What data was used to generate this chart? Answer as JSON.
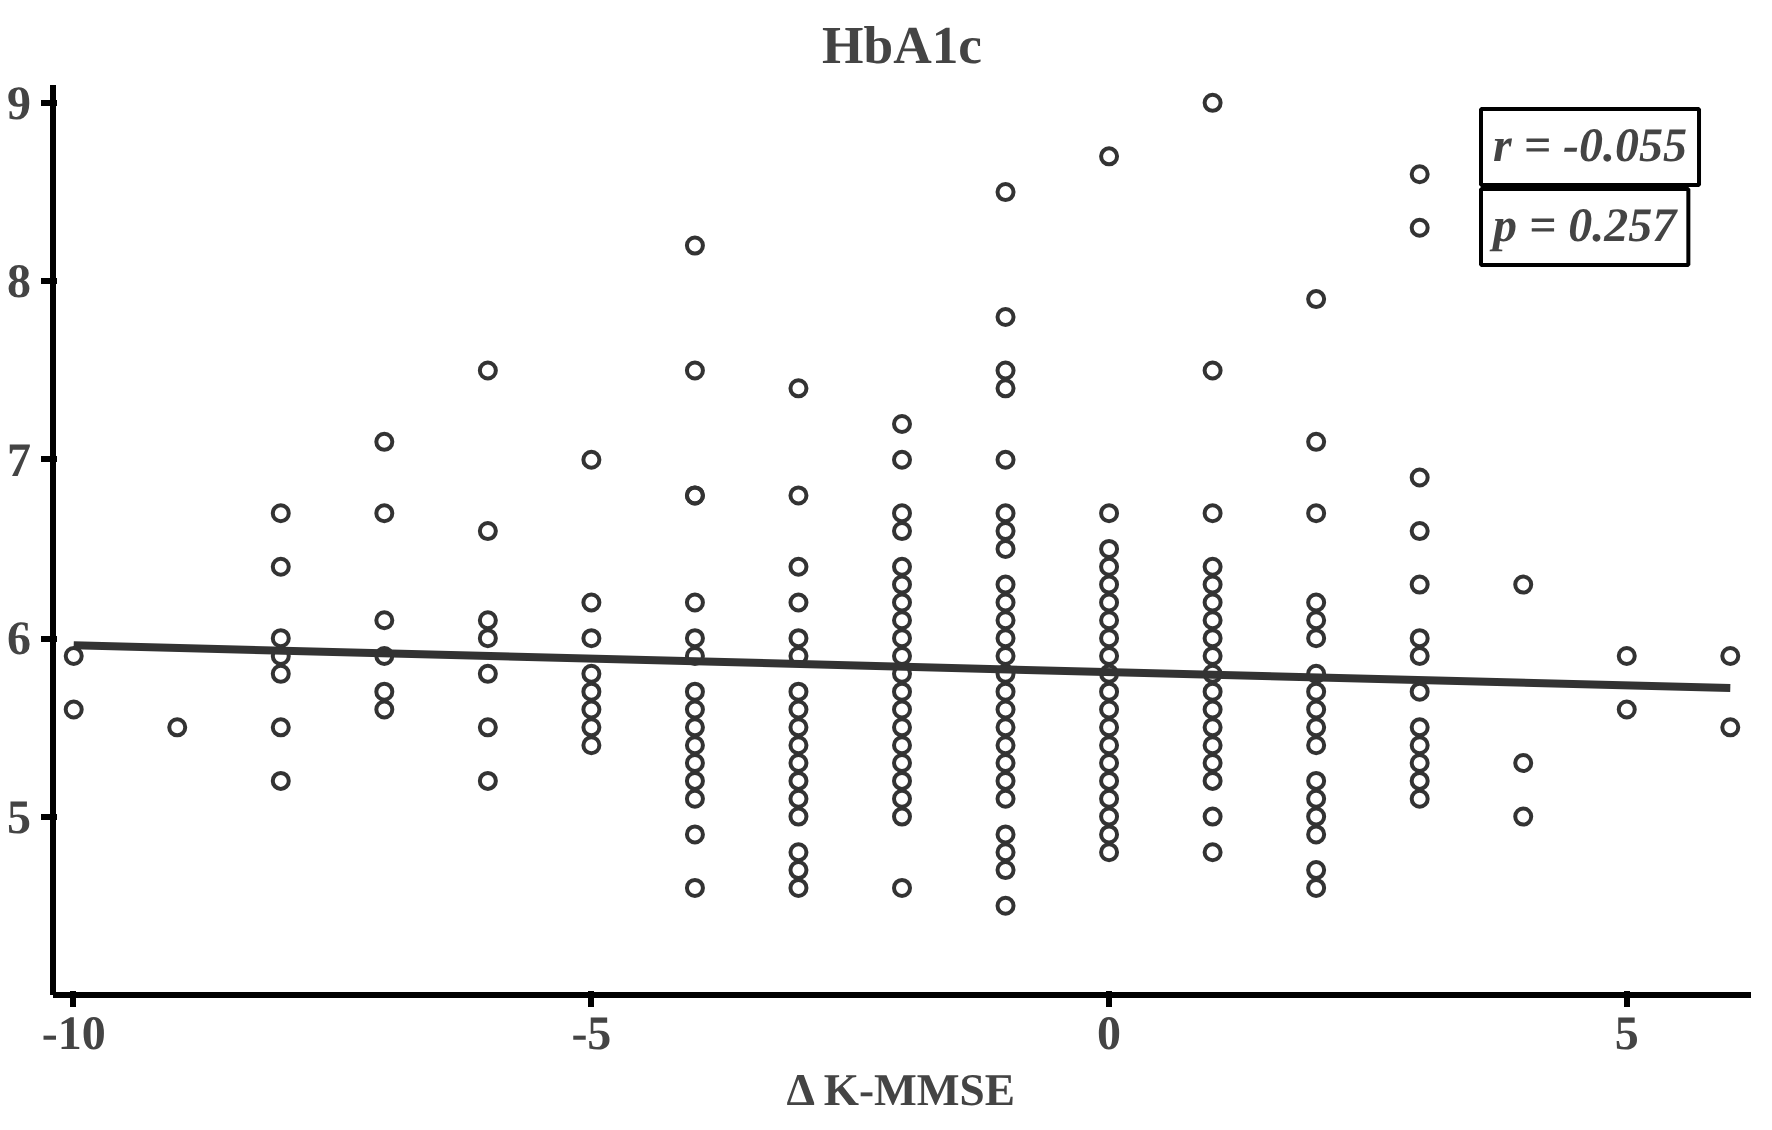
{
  "chart_data": {
    "type": "scatter",
    "title": "HbA1c",
    "xlabel": "Δ K-MMSE",
    "xlim": [
      -10.2,
      6.2
    ],
    "ylim": [
      4,
      9.1
    ],
    "xticks": [
      -10,
      -5,
      0,
      5
    ],
    "yticks": [
      5,
      6,
      7,
      8,
      9
    ],
    "grid": false,
    "marker": "circle",
    "annotations": [
      "r = -0.055",
      "p = 0.257"
    ],
    "series": [
      {
        "color": "#333333",
        "x": [
          -10,
          -10,
          -9,
          -8,
          -8,
          -8,
          -8,
          -8,
          -8,
          -8,
          -7,
          -7,
          -7,
          -7,
          -7,
          -7,
          -6,
          -6,
          -6,
          -6,
          -6,
          -6,
          -6,
          -5,
          -5,
          -5,
          -5,
          -5,
          -5,
          -5,
          -5,
          -4,
          -4,
          -4,
          -4,
          -4,
          -4,
          -4,
          -4,
          -4,
          -4,
          -4,
          -4,
          -4,
          -4,
          -4,
          -4,
          -3,
          -3,
          -3,
          -3,
          -3,
          -3,
          -3,
          -3,
          -3,
          -3,
          -3,
          -3,
          -3,
          -3,
          -3,
          -3,
          -3,
          -2,
          -2,
          -2,
          -2,
          -2,
          -2,
          -2,
          -2,
          -2,
          -2,
          -2,
          -2,
          -2,
          -2,
          -2,
          -2,
          -2,
          -2,
          -2,
          -2,
          -1,
          -1,
          -1,
          -1,
          -1,
          -1,
          -1,
          -1,
          -1,
          -1,
          -1,
          -1,
          -1,
          -1,
          -1,
          -1,
          -1,
          -1,
          -1,
          -1,
          -1,
          -1,
          -1,
          -1,
          -1,
          0,
          0,
          0,
          0,
          0,
          0,
          0,
          0,
          0,
          0,
          0,
          0,
          0,
          0,
          0,
          0,
          0,
          0,
          0,
          0,
          1,
          1,
          1,
          1,
          1,
          1,
          1,
          1,
          1,
          1,
          1,
          1,
          1,
          1,
          1,
          1,
          1,
          1,
          2,
          2,
          2,
          2,
          2,
          2,
          2,
          2,
          2,
          2,
          2,
          2,
          2,
          2,
          2,
          2,
          2,
          3,
          3,
          3,
          3,
          3,
          3,
          3,
          3,
          3,
          3,
          3,
          3,
          3,
          4,
          4,
          4,
          5,
          5,
          6,
          6
        ],
        "values": [
          5.9,
          5.6,
          5.5,
          6.7,
          6.4,
          6.0,
          5.9,
          5.8,
          5.5,
          5.2,
          7.1,
          6.7,
          6.1,
          5.9,
          5.7,
          5.6,
          7.5,
          6.6,
          6.1,
          6.0,
          5.8,
          5.5,
          5.2,
          7.0,
          6.2,
          6.0,
          5.8,
          5.7,
          5.6,
          5.5,
          5.4,
          8.2,
          7.5,
          6.8,
          6.2,
          6.0,
          5.9,
          5.7,
          5.6,
          5.5,
          5.4,
          5.3,
          5.2,
          5.1,
          4.9,
          4.6,
          6.8,
          7.4,
          6.8,
          6.4,
          6.2,
          6.0,
          5.9,
          5.7,
          5.6,
          5.5,
          5.4,
          5.3,
          5.2,
          5.1,
          5.0,
          4.8,
          4.7,
          4.6,
          7.2,
          7.0,
          6.7,
          6.6,
          6.4,
          6.3,
          6.2,
          6.1,
          6.0,
          5.9,
          5.8,
          5.7,
          5.6,
          5.5,
          5.4,
          5.3,
          5.2,
          5.1,
          5.0,
          4.6,
          8.5,
          7.8,
          7.5,
          7.4,
          7.0,
          6.7,
          6.6,
          6.5,
          6.3,
          6.2,
          6.1,
          6.0,
          5.9,
          5.8,
          5.7,
          5.6,
          5.5,
          5.4,
          5.3,
          5.2,
          5.1,
          4.9,
          4.8,
          4.7,
          4.5,
          8.7,
          6.7,
          6.5,
          6.4,
          6.3,
          6.2,
          6.1,
          6.0,
          5.9,
          5.8,
          5.7,
          5.6,
          5.5,
          5.4,
          5.3,
          5.2,
          5.1,
          5.0,
          4.9,
          4.8,
          9.0,
          7.5,
          6.7,
          6.4,
          6.3,
          6.2,
          6.1,
          6.0,
          5.9,
          5.8,
          5.7,
          5.6,
          5.5,
          5.4,
          5.3,
          5.2,
          5.0,
          4.8,
          7.9,
          7.1,
          6.7,
          6.2,
          6.1,
          6.0,
          5.8,
          5.7,
          5.6,
          5.5,
          5.4,
          5.2,
          5.1,
          5.0,
          4.9,
          4.7,
          4.6,
          8.6,
          8.3,
          6.9,
          6.6,
          6.3,
          6.0,
          5.9,
          5.7,
          5.5,
          5.4,
          5.3,
          5.2,
          5.1,
          6.3,
          5.3,
          5.0,
          5.9,
          5.6,
          5.9,
          5.5
        ]
      },
      {
        "type": "line",
        "color": "#333333",
        "x": [
          -10,
          6
        ],
        "values": [
          5.96,
          5.72
        ],
        "marker": "none"
      }
    ]
  }
}
